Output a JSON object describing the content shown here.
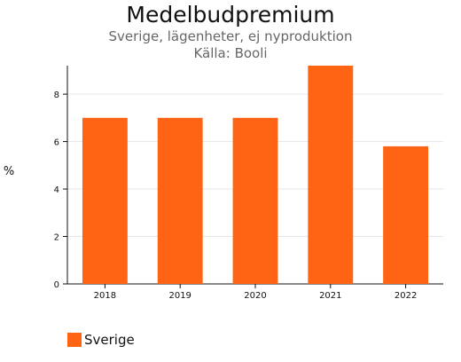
{
  "chart_data": {
    "type": "bar",
    "title": "Medelbudpremium",
    "subtitle": "Sverige, lägenheter, ej nyproduktion",
    "source": "Källa: Booli",
    "ylabel": "%",
    "xlabel": "",
    "categories": [
      "2018",
      "2019",
      "2020",
      "2021",
      "2022"
    ],
    "series": [
      {
        "name": "Sverige",
        "values": [
          7.0,
          7.0,
          7.0,
          9.2,
          5.8
        ],
        "color": "#ff6414"
      }
    ],
    "ylim": [
      0,
      9.2
    ],
    "yticks": [
      "0",
      "2",
      "4",
      "6",
      "8"
    ],
    "grid": true,
    "legend_position": "bottom-left"
  }
}
